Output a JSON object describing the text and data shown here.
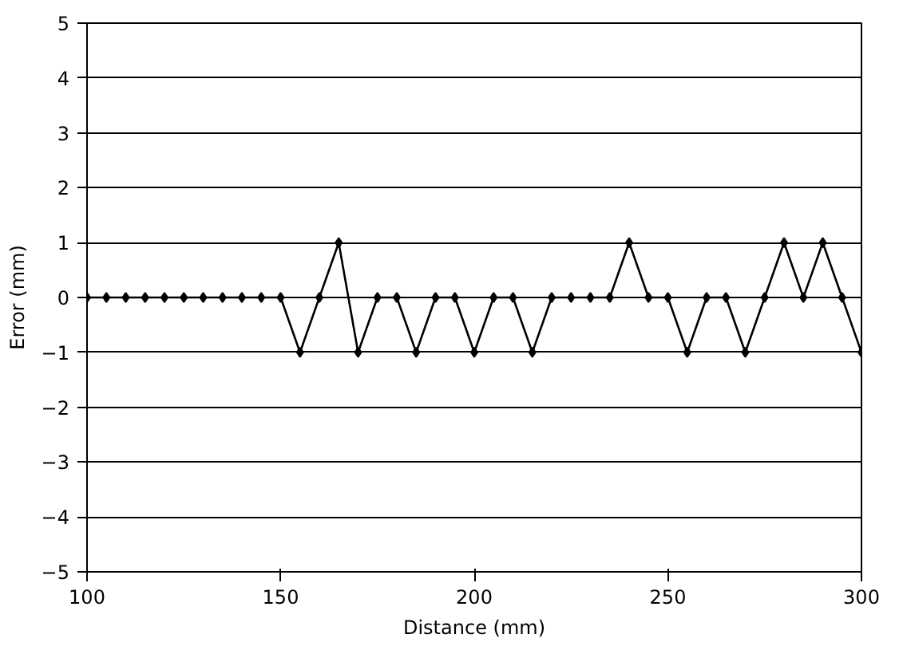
{
  "chart_data": {
    "type": "line",
    "xlabel": "Distance (mm)",
    "ylabel": "Error (mm)",
    "x": [
      100,
      105,
      110,
      115,
      120,
      125,
      130,
      135,
      140,
      145,
      150,
      155,
      160,
      165,
      170,
      175,
      180,
      185,
      190,
      195,
      200,
      205,
      210,
      215,
      220,
      225,
      230,
      235,
      240,
      245,
      250,
      255,
      260,
      265,
      270,
      275,
      280,
      285,
      290,
      295,
      300
    ],
    "series": [
      {
        "color": "#000000",
        "values": [
          0,
          0,
          0,
          0,
          0,
          0,
          0,
          0,
          0,
          0,
          0,
          -1,
          0,
          1,
          -1,
          0,
          0,
          -1,
          0,
          0,
          -1,
          0,
          0,
          -1,
          0,
          0,
          0,
          0,
          1,
          0,
          0,
          -1,
          0,
          0,
          -1,
          0,
          1,
          0,
          1,
          0,
          -1
        ]
      }
    ],
    "xlim": [
      100,
      300
    ],
    "ylim": [
      -5,
      5
    ],
    "xticks": [
      100,
      150,
      200,
      250,
      300
    ],
    "yticks": [
      -5,
      -4,
      -3,
      -2,
      -1,
      0,
      1,
      2,
      3,
      4,
      5
    ],
    "grid": "y",
    "marker": "diamond",
    "line_style": "solid"
  }
}
